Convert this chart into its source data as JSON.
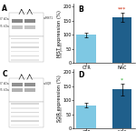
{
  "panel_B": {
    "categories": [
      "CTR",
      "NAC"
    ],
    "values": [
      100,
      162
    ],
    "errors": [
      7,
      16
    ],
    "bar_colors": [
      "#7ec8e3",
      "#1f5f8b"
    ],
    "ylabel": "MST expression (%)",
    "title": "B",
    "ylim": [
      0,
      210
    ],
    "yticks": [
      0,
      50,
      100,
      150,
      200
    ],
    "significance": "***",
    "sig_color": "#cc2200"
  },
  "panel_D": {
    "categories": [
      "CTR",
      "NAC"
    ],
    "values": [
      82,
      138
    ],
    "errors": [
      9,
      20
    ],
    "bar_colors": [
      "#7ec8e3",
      "#1f5f8b"
    ],
    "ylabel": "SQR expression (%)",
    "title": "D",
    "ylim": [
      0,
      210
    ],
    "yticks": [
      0,
      50,
      100,
      150,
      200
    ],
    "significance": "*",
    "sig_color": "#22aa22"
  },
  "background_color": "#ffffff",
  "tick_fontsize": 3.5,
  "label_fontsize": 3.8,
  "title_fontsize": 5.5,
  "sig_fontsize": 4.5,
  "wb_bg": "#e8e8e8",
  "wb_lane_color": "#aaaaaa",
  "wb_band_dark": "#555555",
  "wb_band_mid": "#888888",
  "wb_band_light": "#bbbbbb"
}
